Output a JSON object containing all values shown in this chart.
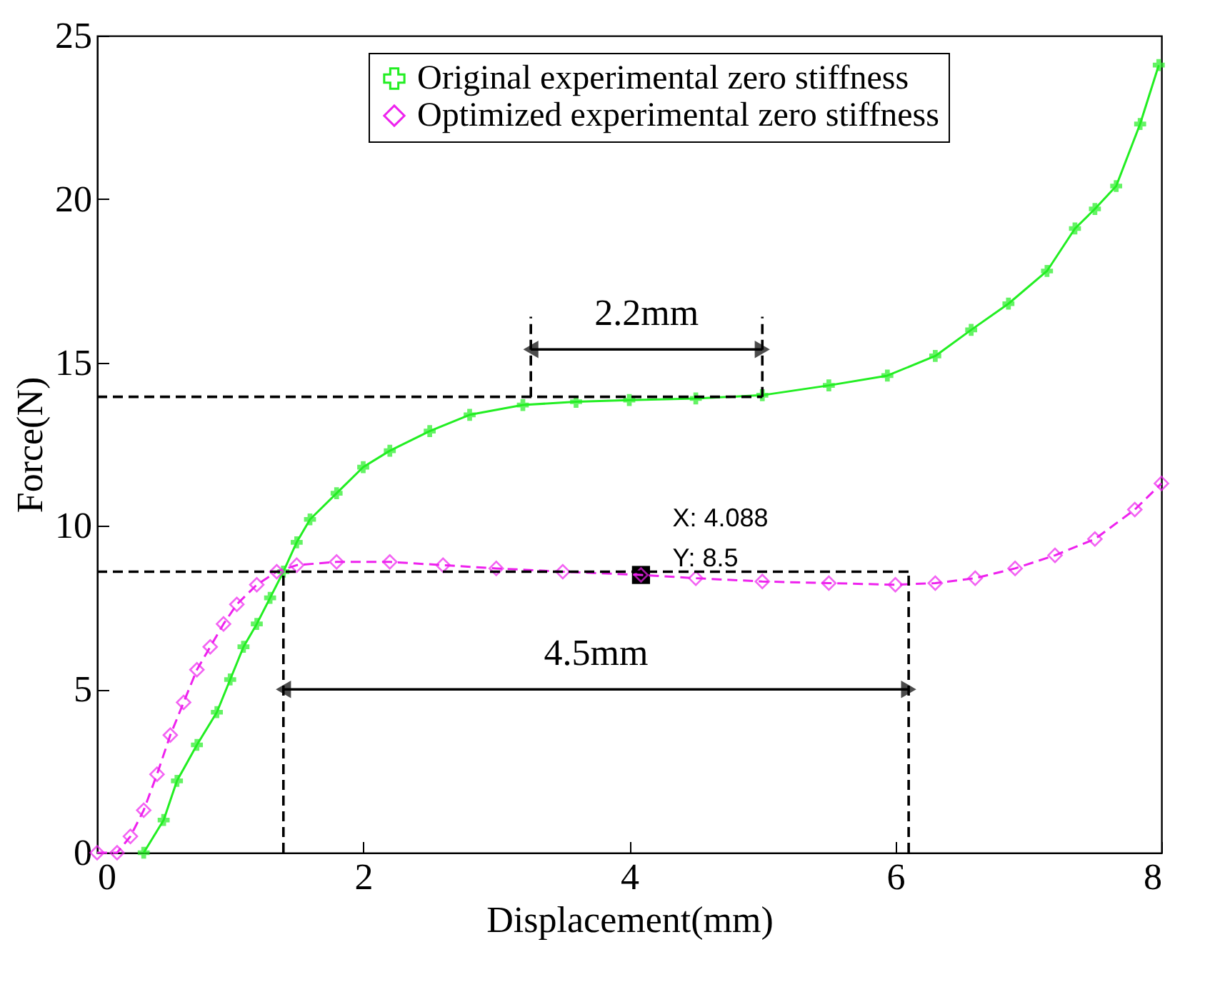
{
  "chart_data": {
    "type": "line",
    "xlabel": "Displacement(mm)",
    "ylabel": "Force(N)",
    "xlim": [
      0,
      8
    ],
    "ylim": [
      0,
      25
    ],
    "xticks": [
      0,
      2,
      4,
      6,
      8
    ],
    "yticks": [
      0,
      5,
      10,
      15,
      20,
      25
    ],
    "grid": false,
    "legend": "top",
    "series": [
      {
        "name": "Original experimental zero stiffness",
        "color": "#22ee22",
        "marker": "cross",
        "line_style": "solid",
        "x": [
          0.35,
          0.5,
          0.6,
          0.75,
          0.9,
          1.0,
          1.1,
          1.2,
          1.3,
          1.4,
          1.5,
          1.6,
          1.8,
          2.0,
          2.2,
          2.5,
          2.8,
          3.2,
          3.6,
          4.0,
          4.5,
          5.0,
          5.5,
          5.94,
          6.3,
          6.57,
          6.85,
          7.14,
          7.35,
          7.5,
          7.66,
          7.84,
          7.98
        ],
        "values": [
          0,
          1.0,
          2.2,
          3.3,
          4.3,
          5.3,
          6.3,
          7.0,
          7.8,
          8.6,
          9.5,
          10.2,
          11.0,
          11.8,
          12.3,
          12.9,
          13.4,
          13.7,
          13.8,
          13.85,
          13.9,
          14.0,
          14.3,
          14.6,
          15.2,
          16.0,
          16.8,
          17.8,
          19.1,
          19.7,
          20.4,
          22.3,
          24.1
        ]
      },
      {
        "name": "Optimized experimental zero stiffness",
        "color": "#ee22ee",
        "marker": "diamond",
        "line_style": "dashed",
        "x": [
          0,
          0.15,
          0.25,
          0.35,
          0.45,
          0.55,
          0.65,
          0.75,
          0.85,
          0.95,
          1.05,
          1.2,
          1.35,
          1.5,
          1.8,
          2.2,
          2.6,
          3.0,
          3.5,
          4.088,
          4.5,
          5.0,
          5.5,
          6.0,
          6.3,
          6.6,
          6.9,
          7.2,
          7.5,
          7.8,
          8.0
        ],
        "values": [
          0,
          0,
          0.5,
          1.3,
          2.4,
          3.6,
          4.6,
          5.6,
          6.3,
          7.0,
          7.6,
          8.2,
          8.6,
          8.8,
          8.9,
          8.9,
          8.8,
          8.7,
          8.6,
          8.5,
          8.4,
          8.3,
          8.25,
          8.2,
          8.25,
          8.4,
          8.7,
          9.1,
          9.6,
          10.5,
          11.3
        ]
      },
      {
        "color": "#000000",
        "marker": "none",
        "line_style": "dashed",
        "x": [
          0,
          5.0
        ],
        "values": [
          13.95,
          13.95
        ]
      },
      {
        "color": "#000000",
        "marker": "none",
        "line_style": "dashed",
        "x": [
          0,
          6.1
        ],
        "values": [
          8.6,
          8.6
        ]
      },
      {
        "color": "#000000",
        "marker": "none",
        "line_style": "dashed",
        "x": [
          1.4,
          1.4
        ],
        "values": [
          0,
          8.6
        ]
      },
      {
        "color": "#000000",
        "marker": "none",
        "line_style": "dashed",
        "x": [
          6.1,
          6.1
        ],
        "values": [
          0,
          8.6
        ]
      },
      {
        "color": "#000000",
        "marker": "none",
        "line_style": "dashed",
        "x": [
          3.26,
          3.26
        ],
        "values": [
          13.95,
          16.4
        ]
      },
      {
        "color": "#000000",
        "marker": "none",
        "line_style": "dashed",
        "x": [
          5.0,
          5.0
        ],
        "values": [
          13.95,
          16.4
        ]
      },
      {
        "color": "#000000",
        "marker": "triangle",
        "line_style": "solid",
        "x": [
          3.26,
          5.0
        ],
        "values": [
          15.4,
          15.4
        ]
      },
      {
        "color": "#000000",
        "marker": "triangle",
        "line_style": "solid",
        "x": [
          1.4,
          6.1
        ],
        "values": [
          5.0,
          5.0
        ]
      }
    ],
    "annotations": [
      "2.2mm",
      "4.5mm",
      {
        "text": "X: 4.088\nY: 8.5",
        "x": 4.088,
        "y": 8.5
      }
    ]
  }
}
